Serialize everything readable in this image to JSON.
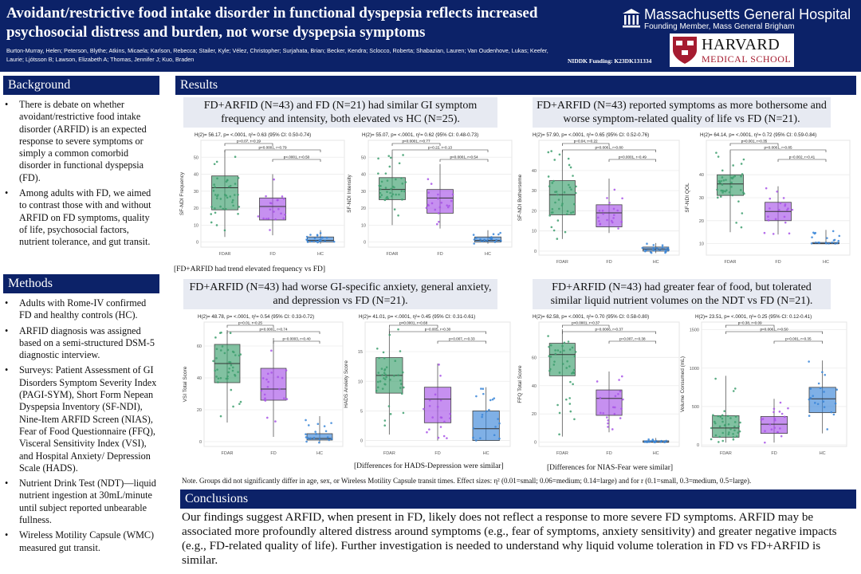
{
  "header": {
    "title": "Avoidant/restrictive food intake disorder in functional dyspepsia reflects increased psychosocial distress and burden, not worse dyspepsia symptoms",
    "authors": "Burton-Murray, Helen; Peterson, Blythe; Atkins, Micaela; Karlson, Rebecca; Stailer, Kyle; Vélez, Christopher; Surjahata, Brian; Becker, Kendra; Sclocco, Roberta; Shabazian, Lauren; Van Oudenhove, Lukas; Keefer, Laurie; Ljótsson B; Lawson, Elizabeth A; Thomas, Jennifer J; Kuo, Braden",
    "funding": "NIDDK Funding: K23DK131334",
    "mgh_name": "Massachusetts General Hospital",
    "mgh_sub": "Founding Member, Mass General Brigham",
    "harvard_line1": "HARVARD",
    "harvard_line2": "MEDICAL SCHOOL"
  },
  "background": {
    "heading": "Background",
    "bullets": [
      "There is debate on whether avoidant/restrictive food intake disorder (ARFID) is an expected response to severe symptoms or simply a common comorbid disorder in functional dyspepsia (FD).",
      "Among adults with FD, we aimed to contrast those with and without ARFID on FD symptoms, quality of life, psychosocial factors, nutrient tolerance, and gut transit."
    ]
  },
  "methods": {
    "heading": "Methods",
    "bullets": [
      "Adults with Rome-IV confirmed FD and healthy controls (HC).",
      "ARFID diagnosis was assigned based on a semi-structured DSM-5 diagnostic interview.",
      "Surveys: Patient Assessment of GI Disorders Symptom Severity Index (PAGI-SYM), Short Form Nepean Dyspepsia Inventory (SF-NDI), Nine-Item ARFID Screen (NIAS), Fear of Food Questionnaire (FFQ), Visceral Sensitivity Index (VSI), and Hospital Anxiety/ Depression Scale (HADS).",
      "Nutrient Drink Test (NDT)—liquid nutrient ingestion at 30mL/minute until subject reported unbearable fullness.",
      " Wireless Motility Capsule (WMC) measured gut transit."
    ]
  },
  "results": {
    "heading": "Results",
    "panel1_title": "FD+ARFID (N=43) and FD (N=21) had similar GI symptom frequency and intensity, both elevated vs HC (N=25).",
    "panel2_title": "FD+ARFID (N=43) reported symptoms as more bothersome and worse symptom-related quality of life vs FD (N=21).",
    "panel3_title": "FD+ARFID (N=43) had worse GI-specific anxiety, general anxiety, and depression vs FD (N=21).",
    "panel4_title": "FD+ARFID (N=43) had greater fear of food, but tolerated similar liquid nutrient volumes on the NDT vs FD (N=21).",
    "caption1": "[FD+ARFID had trend elevated frequency vs FD]",
    "caption3": "[Differences for HADS-Depression were similar]",
    "caption4": "[Differences for NIAS-Fear were similar]",
    "note": "Note. Groups did not significantly differ in age, sex, or Wireless Motility Capsule transit times. Effect sizes: η² (0.01=small; 0.06=medium; 0.14=large) and for r (0.1=small, 0.3=medium, 0.5=large)."
  },
  "conclusions": {
    "heading": "Conclusions",
    "text": "Our findings suggest ARFID, when present in FD, likely does not reflect a response to more severe FD symptoms. ARFID may be associated more profoundly altered distress around symptoms (e.g., fear of symptoms, anxiety sensitivity) and greater negative impacts (e.g., FD-related quality of life). Further investigation is needed to understand why liquid volume toleration in FD vs FD+ARFID is similar."
  },
  "colors": {
    "navy": "#0c2268",
    "fdar": "#3e9f6e",
    "fd": "#a855e8",
    "hc": "#3a86d8",
    "panel_bg": "#e7eaf2"
  },
  "chart_data": [
    {
      "type": "box",
      "ylabel": "SF-NDI Frequency",
      "stat": "H(2)= 56.17, p= <.0001, η²= 0.63 (95% CI: 0.50-0.74)",
      "categories": [
        "FDAR",
        "FD",
        "HC"
      ],
      "yticks": [
        0,
        10,
        20,
        30,
        40,
        50
      ],
      "ylim": [
        -3,
        60
      ],
      "boxes": [
        {
          "q1": 19,
          "median": 32,
          "q3": 39,
          "lo": 3,
          "hi": 54
        },
        {
          "q1": 13,
          "median": 21,
          "q3": 26,
          "lo": 4,
          "hi": 40
        },
        {
          "q1": 0,
          "median": 1,
          "q3": 3,
          "lo": -1,
          "hi": 7
        }
      ],
      "brackets": [
        "p=0.07, r=0.19",
        "p<0.0001, r=0.79",
        "p<.0001, r=0.50"
      ]
    },
    {
      "type": "box",
      "ylabel": "SF-NDI Intensity",
      "stat": "H(2)= 55.07, p= <.0001, η²= 0.62 (95% CI: 0.48-0.73)",
      "categories": [
        "FDAR",
        "FD",
        "HC"
      ],
      "yticks": [
        0,
        10,
        20,
        30,
        40,
        50
      ],
      "ylim": [
        -3,
        60
      ],
      "boxes": [
        {
          "q1": 25,
          "median": 31,
          "q3": 38,
          "lo": 10,
          "hi": 53
        },
        {
          "q1": 17,
          "median": 26,
          "q3": 31,
          "lo": 8,
          "hi": 46
        },
        {
          "q1": 0,
          "median": 1,
          "q3": 3,
          "lo": -1,
          "hi": 7
        }
      ],
      "brackets": [
        "p<0.0001, r=0.77",
        "p=0.22, r=0.13",
        "p<0.0001, r=0.54"
      ]
    },
    {
      "type": "box",
      "ylabel": "SF-NDI Bothersome",
      "stat": "H(2)= 57.90, p= <.0001, η²= 0.65 (95% CI: 0.52-0.76)",
      "categories": [
        "FDAR",
        "FD",
        "HC"
      ],
      "yticks": [
        0,
        10,
        20,
        30,
        40
      ],
      "ylim": [
        -2,
        55
      ],
      "boxes": [
        {
          "q1": 18,
          "median": 28,
          "q3": 35,
          "lo": 6,
          "hi": 50
        },
        {
          "q1": 12,
          "median": 19,
          "q3": 23,
          "lo": 9,
          "hi": 36
        },
        {
          "q1": 0,
          "median": 1,
          "q3": 2,
          "lo": -1,
          "hi": 4
        }
      ],
      "brackets": [
        "p=0.04, r=0.22",
        "p<0.0001, r=0.80",
        "p<0.0001, r=0.49"
      ]
    },
    {
      "type": "box",
      "ylabel": "SF-NDI QOL",
      "stat": "H(2)= 64.14, p= <.0001, η²= 0.72 (95% CI: 0.59-0.84)",
      "categories": [
        "FDAR",
        "FD",
        "HC"
      ],
      "yticks": [
        10,
        20,
        30,
        40
      ],
      "ylim": [
        5,
        55
      ],
      "boxes": [
        {
          "q1": 31,
          "median": 36,
          "q3": 40,
          "lo": 15,
          "hi": 50
        },
        {
          "q1": 20,
          "median": 24,
          "q3": 28,
          "lo": 14,
          "hi": 35
        },
        {
          "q1": 10,
          "median": 10,
          "q3": 10.5,
          "lo": 10,
          "hi": 16
        }
      ],
      "brackets": [
        "p<0.001, r=0.35",
        "p<0.0001, r=0.85",
        "p=0.002, r=0.41"
      ]
    },
    {
      "type": "box",
      "ylabel": "VSI Total Score",
      "stat": "H(2)= 48.78, p= <.0001, η²= 0.54 (95% CI: 0.33-0.72)",
      "categories": [
        "FDAR",
        "FD",
        "HC"
      ],
      "yticks": [
        0,
        20,
        40,
        60
      ],
      "ylim": [
        -3,
        75
      ],
      "boxes": [
        {
          "q1": 37,
          "median": 49,
          "q3": 61,
          "lo": 12,
          "hi": 70
        },
        {
          "q1": 26,
          "median": 33,
          "q3": 46,
          "lo": 3,
          "hi": 65
        },
        {
          "q1": 1,
          "median": 2,
          "q3": 5,
          "lo": -1,
          "hi": 16
        }
      ],
      "brackets": [
        "p=0.01, r=0.25",
        "p<0.0001, r=0.74",
        "p=0.0003, r=0.40"
      ]
    },
    {
      "type": "box",
      "ylabel": "HADS Anxiety Score",
      "stat": "H(2)= 41.01, p= <.0001, η²= 0.45 (95% CI: 0.31-0.61)",
      "categories": [
        "FDAR",
        "FD",
        "HC"
      ],
      "yticks": [
        0,
        5,
        10,
        15
      ],
      "ylim": [
        -1,
        20
      ],
      "boxes": [
        {
          "q1": 8,
          "median": 11,
          "q3": 14,
          "lo": 1,
          "hi": 19
        },
        {
          "q1": 3,
          "median": 7,
          "q3": 9,
          "lo": 0,
          "hi": 13
        },
        {
          "q1": 0,
          "median": 2,
          "q3": 5,
          "lo": 0,
          "hi": 9
        }
      ],
      "brackets": [
        "p<0.0001, r=0.68",
        "p=0.005, r=0.30",
        "p=0.007, r=0.33"
      ]
    },
    {
      "type": "box",
      "ylabel": "FFQ Total Score",
      "stat": "H(2)= 62.58, p= <.0001, η²= 0.70 (95% CI: 0.58-0.80)",
      "categories": [
        "FDAR",
        "FD",
        "HC"
      ],
      "yticks": [
        0,
        20,
        40,
        60
      ],
      "ylim": [
        -3,
        85
      ],
      "boxes": [
        {
          "q1": 47,
          "median": 62,
          "q3": 70,
          "lo": 4,
          "hi": 80
        },
        {
          "q1": 19,
          "median": 31,
          "q3": 37,
          "lo": 7,
          "hi": 50
        },
        {
          "q1": 0,
          "median": 0,
          "q3": 1,
          "lo": 0,
          "hi": 3
        }
      ],
      "brackets": [
        "p<0.0001, r=0.37",
        "p=0.0006, r=0.37",
        "p=0.007, r=0.38"
      ]
    },
    {
      "type": "box",
      "ylabel": "Volume Consumed (mL)",
      "stat": "H(2)= 23.51, p= <.0001, η²= 0.25 (95% CI: 0.12-0.41)",
      "categories": [
        "FDAR",
        "FD",
        "HC"
      ],
      "yticks": [
        0,
        500,
        1000,
        1500
      ],
      "ylim": [
        -20,
        1600
      ],
      "boxes": [
        {
          "q1": 100,
          "median": 220,
          "q3": 380,
          "lo": 30,
          "hi": 900
        },
        {
          "q1": 150,
          "median": 270,
          "q3": 370,
          "lo": 30,
          "hi": 600
        },
        {
          "q1": 420,
          "median": 600,
          "q3": 750,
          "lo": 150,
          "hi": 1100
        }
      ],
      "brackets": [
        "p=0.38, r=0.09",
        "p<0.0001, r=0.50",
        "p=0.001, r=0.35"
      ]
    }
  ]
}
